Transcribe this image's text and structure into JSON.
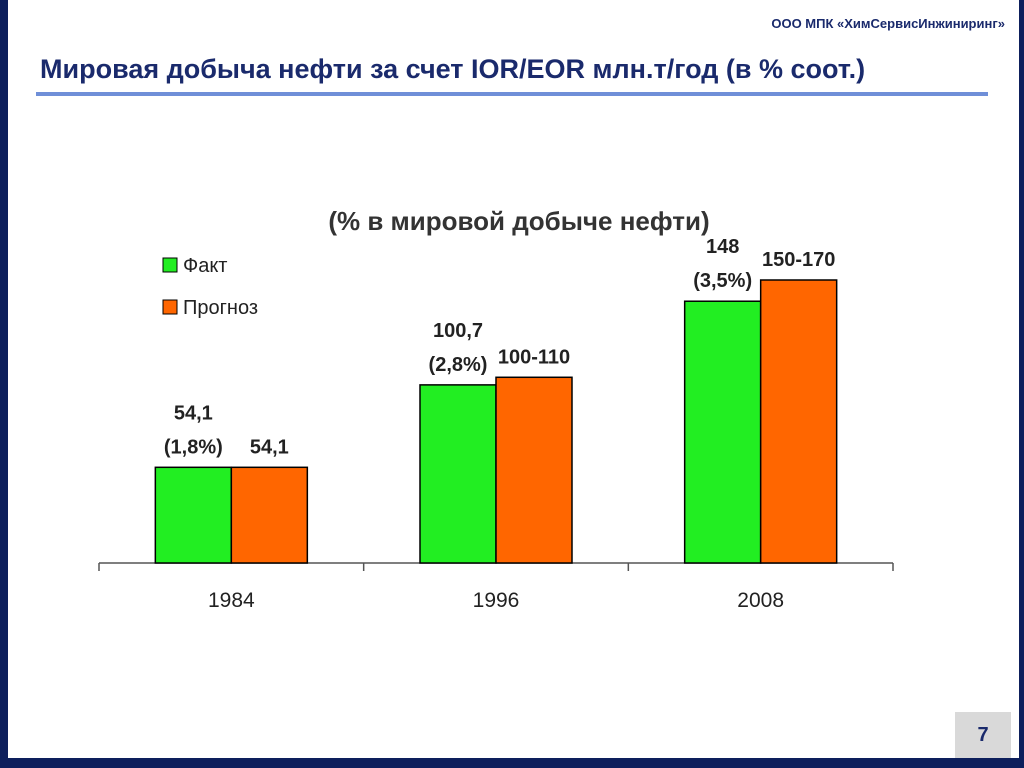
{
  "header": {
    "company": "ООО МПК «ХимСервисИнжиниринг»",
    "title": "Мировая добыча нефти за счет IOR/EOR млн.т/год (в % соот.)"
  },
  "page_number": "7",
  "colors": {
    "fact": "#22ee22",
    "forecast": "#ff6600",
    "title_blue": "#1a2a6c",
    "rule_blue": "#6f8fd8",
    "frame_navy": "#0d1f5c"
  },
  "chart_data": {
    "type": "bar",
    "title": "(% в мировой добыче нефти)",
    "categories": [
      "1984",
      "1996",
      "2008"
    ],
    "series": [
      {
        "name": "Факт",
        "values": [
          54.1,
          100.7,
          148
        ],
        "labels": [
          [
            "54,1",
            "(1,8%)"
          ],
          [
            "100,7",
            "(2,8%)"
          ],
          [
            "148",
            "(3,5%)"
          ]
        ]
      },
      {
        "name": "Прогноз",
        "values": [
          54.1,
          105,
          160
        ],
        "labels": [
          [
            "54,1"
          ],
          [
            "100-110"
          ],
          [
            "150-170"
          ]
        ]
      }
    ],
    "ylim": [
      0,
      160
    ],
    "grid": false,
    "legend": "top-left"
  }
}
